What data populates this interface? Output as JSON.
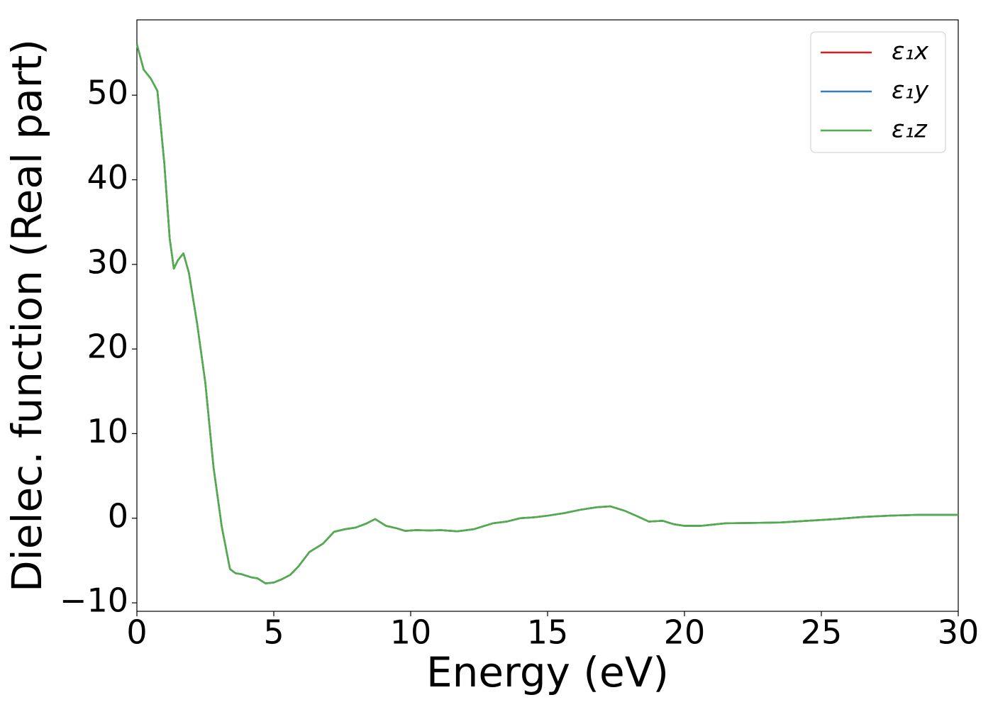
{
  "chart_data": {
    "type": "line",
    "xlabel": "Energy (eV)",
    "ylabel": "Dielec. function (Real part)",
    "x": [
      0,
      0.25,
      0.5,
      0.75,
      1.0,
      1.2,
      1.35,
      1.5,
      1.7,
      1.9,
      2.2,
      2.5,
      2.8,
      3.1,
      3.4,
      3.6,
      3.8,
      4.2,
      4.4,
      4.7,
      5.0,
      5.3,
      5.6,
      5.9,
      6.3,
      6.8,
      7.2,
      7.6,
      8.0,
      8.4,
      8.7,
      9.1,
      9.5,
      9.8,
      10.2,
      10.7,
      11.1,
      11.7,
      12.3,
      13.0,
      13.5,
      14.0,
      14.5,
      15.0,
      15.6,
      16.2,
      16.8,
      17.3,
      17.8,
      18.3,
      18.7,
      19.2,
      19.6,
      20.0,
      20.6,
      21.5,
      22.5,
      23.5,
      24.5,
      25.5,
      26.5,
      27.5,
      28.5,
      30
    ],
    "series": [
      {
        "name": "ε₁x",
        "color": "#e41a1c",
        "values": [
          56,
          53,
          52,
          50.5,
          42,
          33,
          29.5,
          30.5,
          31.3,
          29,
          23,
          16,
          6,
          -1,
          -6,
          -6.5,
          -6.6,
          -7,
          -7.1,
          -7.7,
          -7.6,
          -7.2,
          -6.7,
          -5.7,
          -4,
          -3,
          -1.6,
          -1.3,
          -1.1,
          -0.6,
          -0.1,
          -0.9,
          -1.2,
          -1.5,
          -1.4,
          -1.45,
          -1.4,
          -1.55,
          -1.3,
          -0.6,
          -0.4,
          0,
          0.1,
          0.3,
          0.6,
          1.0,
          1.3,
          1.4,
          0.9,
          0.2,
          -0.4,
          -0.3,
          -0.7,
          -0.9,
          -0.9,
          -0.6,
          -0.55,
          -0.5,
          -0.3,
          -0.1,
          0.15,
          0.3,
          0.4,
          0.4
        ]
      },
      {
        "name": "ε₁y",
        "color": "#377eb8",
        "values": [
          56,
          53,
          52,
          50.5,
          42,
          33,
          29.5,
          30.5,
          31.3,
          29,
          23,
          16,
          6,
          -1,
          -6,
          -6.5,
          -6.6,
          -7,
          -7.1,
          -7.7,
          -7.6,
          -7.2,
          -6.7,
          -5.7,
          -4,
          -3,
          -1.6,
          -1.3,
          -1.1,
          -0.6,
          -0.1,
          -0.9,
          -1.2,
          -1.5,
          -1.4,
          -1.45,
          -1.4,
          -1.55,
          -1.3,
          -0.6,
          -0.4,
          0,
          0.1,
          0.3,
          0.6,
          1.0,
          1.3,
          1.4,
          0.9,
          0.2,
          -0.4,
          -0.3,
          -0.7,
          -0.9,
          -0.9,
          -0.6,
          -0.55,
          -0.5,
          -0.3,
          -0.1,
          0.15,
          0.3,
          0.4,
          0.4
        ]
      },
      {
        "name": "ε₁z",
        "color": "#4daf4a",
        "values": [
          56,
          53,
          52,
          50.5,
          42,
          33,
          29.5,
          30.5,
          31.3,
          29,
          23,
          16,
          6,
          -1,
          -6,
          -6.5,
          -6.6,
          -7,
          -7.1,
          -7.7,
          -7.6,
          -7.2,
          -6.7,
          -5.7,
          -4,
          -3,
          -1.6,
          -1.3,
          -1.1,
          -0.6,
          -0.1,
          -0.9,
          -1.2,
          -1.5,
          -1.4,
          -1.45,
          -1.4,
          -1.55,
          -1.3,
          -0.6,
          -0.4,
          0,
          0.1,
          0.3,
          0.6,
          1.0,
          1.3,
          1.4,
          0.9,
          0.2,
          -0.4,
          -0.3,
          -0.7,
          -0.9,
          -0.9,
          -0.6,
          -0.55,
          -0.5,
          -0.3,
          -0.1,
          0.15,
          0.3,
          0.4,
          0.4
        ]
      }
    ],
    "xlim": [
      0,
      30
    ],
    "xticks": [
      0,
      5,
      10,
      15,
      20,
      25,
      30
    ],
    "ylim": [
      -11,
      58.9
    ],
    "yticks": [
      {
        "value": -10,
        "label": "−10"
      },
      0,
      10,
      20,
      30,
      40,
      50
    ],
    "legend": "upper right",
    "grid": false
  }
}
